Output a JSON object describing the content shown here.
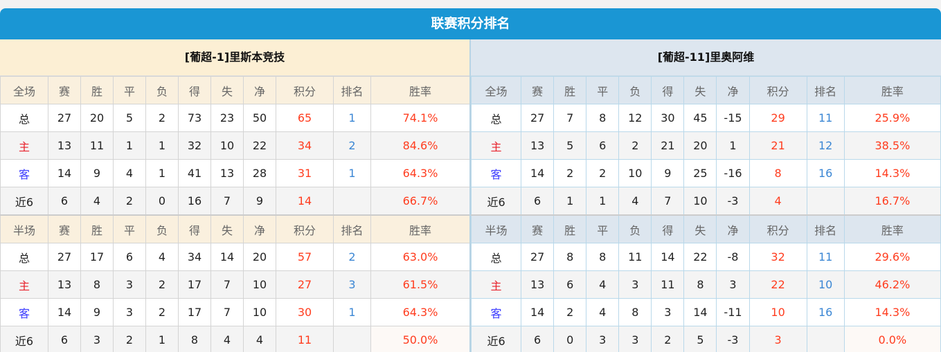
{
  "title": "联赛积分排名",
  "colors": {
    "header": "#1a96d4",
    "points": "#ff3c1e",
    "rank": "#3a86d4",
    "home": "#e8202a",
    "away": "#3a3aff"
  },
  "teams": [
    {
      "name": "[葡超-1]里斯本竞技",
      "full": {
        "header": [
          "全场",
          "赛",
          "胜",
          "平",
          "负",
          "得",
          "失",
          "净",
          "积分",
          "排名",
          "胜率"
        ],
        "rows": [
          [
            "总",
            "27",
            "20",
            "5",
            "2",
            "73",
            "23",
            "50",
            "65",
            "1",
            "74.1%"
          ],
          [
            "主",
            "13",
            "11",
            "1",
            "1",
            "32",
            "10",
            "22",
            "34",
            "2",
            "84.6%"
          ],
          [
            "客",
            "14",
            "9",
            "4",
            "1",
            "41",
            "13",
            "28",
            "31",
            "1",
            "64.3%"
          ],
          [
            "近6",
            "6",
            "4",
            "2",
            "0",
            "16",
            "7",
            "9",
            "14",
            "",
            "66.7%"
          ]
        ]
      },
      "half": {
        "header": [
          "半场",
          "赛",
          "胜",
          "平",
          "负",
          "得",
          "失",
          "净",
          "积分",
          "排名",
          "胜率"
        ],
        "rows": [
          [
            "总",
            "27",
            "17",
            "6",
            "4",
            "34",
            "14",
            "20",
            "57",
            "2",
            "63.0%"
          ],
          [
            "主",
            "13",
            "8",
            "3",
            "2",
            "17",
            "7",
            "10",
            "27",
            "3",
            "61.5%"
          ],
          [
            "客",
            "14",
            "9",
            "3",
            "2",
            "17",
            "7",
            "10",
            "30",
            "1",
            "64.3%"
          ],
          [
            "近6",
            "6",
            "3",
            "2",
            "1",
            "8",
            "4",
            "4",
            "11",
            "",
            "50.0%"
          ]
        ]
      }
    },
    {
      "name": "[葡超-11]里奥阿维",
      "full": {
        "header": [
          "全场",
          "赛",
          "胜",
          "平",
          "负",
          "得",
          "失",
          "净",
          "积分",
          "排名",
          "胜率"
        ],
        "rows": [
          [
            "总",
            "27",
            "7",
            "8",
            "12",
            "30",
            "45",
            "-15",
            "29",
            "11",
            "25.9%"
          ],
          [
            "主",
            "13",
            "5",
            "6",
            "2",
            "21",
            "20",
            "1",
            "21",
            "12",
            "38.5%"
          ],
          [
            "客",
            "14",
            "2",
            "2",
            "10",
            "9",
            "25",
            "-16",
            "8",
            "16",
            "14.3%"
          ],
          [
            "近6",
            "6",
            "1",
            "1",
            "4",
            "7",
            "10",
            "-3",
            "4",
            "",
            "16.7%"
          ]
        ]
      },
      "half": {
        "header": [
          "半场",
          "赛",
          "胜",
          "平",
          "负",
          "得",
          "失",
          "净",
          "积分",
          "排名",
          "胜率"
        ],
        "rows": [
          [
            "总",
            "27",
            "8",
            "8",
            "11",
            "14",
            "22",
            "-8",
            "32",
            "11",
            "29.6%"
          ],
          [
            "主",
            "13",
            "6",
            "4",
            "3",
            "11",
            "8",
            "3",
            "22",
            "10",
            "46.2%"
          ],
          [
            "客",
            "14",
            "2",
            "4",
            "8",
            "3",
            "14",
            "-11",
            "10",
            "16",
            "14.3%"
          ],
          [
            "近6",
            "6",
            "0",
            "3",
            "3",
            "2",
            "5",
            "-3",
            "3",
            "",
            "0.0%"
          ]
        ]
      }
    }
  ]
}
